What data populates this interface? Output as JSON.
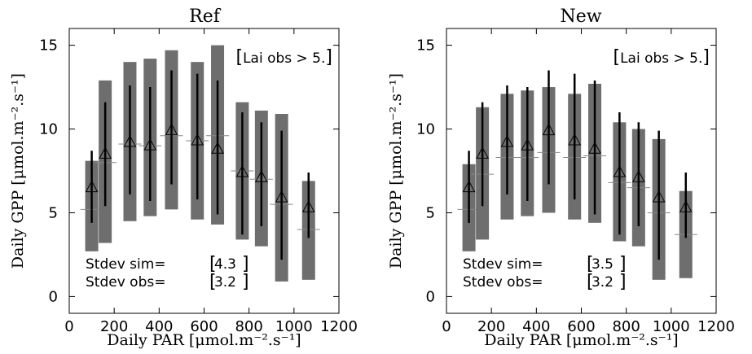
{
  "chart_data": [
    {
      "type": "box",
      "title": "Ref",
      "xlabel": "Daily PAR [μmol.m⁻².s⁻¹]",
      "ylabel": "Daily GPP [μmol.m⁻².s⁻¹]",
      "xlim": [
        0,
        1200
      ],
      "ylim": [
        -1,
        16
      ],
      "xticks": [
        "0",
        "200",
        "400",
        "600",
        "800",
        "1000",
        "1200"
      ],
      "xtick_values": [
        0,
        200,
        400,
        600,
        800,
        1000,
        1200
      ],
      "yticks": [
        "0",
        "5",
        "10",
        "15"
      ],
      "ytick_values": [
        0,
        5,
        10,
        15
      ],
      "annotation": "Lai obs > 5.",
      "stats": [
        {
          "label": "Stdev sim=",
          "value": "4.3"
        },
        {
          "label": "Stdev obs=",
          "value": "3.2"
        }
      ],
      "series": [
        {
          "x": [
            100,
            160,
            270,
            360,
            455,
            570,
            660,
            770,
            855,
            945,
            1065
          ],
          "sim_box": [
            [
              2.7,
              8.1
            ],
            [
              3.2,
              12.9
            ],
            [
              4.5,
              14.0
            ],
            [
              4.8,
              14.2
            ],
            [
              5.2,
              14.7
            ],
            [
              4.6,
              14.0
            ],
            [
              4.3,
              15.0
            ],
            [
              3.4,
              11.6
            ],
            [
              3.0,
              11.1
            ],
            [
              0.9,
              10.9
            ],
            [
              1.0,
              6.9
            ]
          ],
          "sim_mean": [
            5.2,
            8.0,
            9.1,
            9.0,
            9.6,
            9.3,
            9.6,
            7.5,
            7.0,
            5.5,
            4.0
          ],
          "obs_mean": [
            6.5,
            8.5,
            9.2,
            9.0,
            9.9,
            9.3,
            8.8,
            7.4,
            7.1,
            5.9,
            5.3
          ],
          "obs_err": [
            [
              4.4,
              8.7
            ],
            [
              5.4,
              11.6
            ],
            [
              6.1,
              12.6
            ],
            [
              5.7,
              12.5
            ],
            [
              6.7,
              13.5
            ],
            [
              5.8,
              13.3
            ],
            [
              4.9,
              12.9
            ],
            [
              3.7,
              11.0
            ],
            [
              4.2,
              10.4
            ],
            [
              2.2,
              9.9
            ],
            [
              3.5,
              7.4
            ]
          ]
        }
      ]
    },
    {
      "type": "box",
      "title": "New",
      "xlabel": "Daily PAR [μmol.m⁻².s⁻¹]",
      "ylabel": "Daily GPP [μmol.m⁻².s⁻¹]",
      "xlim": [
        0,
        1200
      ],
      "ylim": [
        -1,
        16
      ],
      "xticks": [
        "0",
        "200",
        "400",
        "600",
        "800",
        "1000",
        "1200"
      ],
      "xtick_values": [
        0,
        200,
        400,
        600,
        800,
        1000,
        1200
      ],
      "yticks": [
        "0",
        "5",
        "10",
        "15"
      ],
      "ytick_values": [
        0,
        5,
        10,
        15
      ],
      "annotation": "Lai obs > 5.",
      "stats": [
        {
          "label": "Stdev sim=",
          "value": "3.5"
        },
        {
          "label": "Stdev obs=",
          "value": "3.2"
        }
      ],
      "series": [
        {
          "x": [
            100,
            160,
            270,
            360,
            455,
            570,
            660,
            770,
            855,
            945,
            1065
          ],
          "sim_box": [
            [
              2.7,
              7.9
            ],
            [
              3.4,
              11.3
            ],
            [
              4.6,
              12.1
            ],
            [
              4.8,
              12.3
            ],
            [
              5.0,
              12.5
            ],
            [
              4.6,
              12.1
            ],
            [
              4.4,
              12.7
            ],
            [
              3.3,
              10.4
            ],
            [
              3.0,
              10.0
            ],
            [
              1.0,
              9.4
            ],
            [
              1.1,
              6.3
            ]
          ],
          "sim_mean": [
            5.2,
            7.3,
            8.3,
            8.3,
            8.6,
            8.3,
            8.4,
            6.8,
            6.5,
            5.0,
            3.7
          ],
          "obs_mean": [
            6.5,
            8.5,
            9.2,
            9.0,
            9.9,
            9.3,
            8.8,
            7.4,
            7.1,
            5.9,
            5.3
          ],
          "obs_err": [
            [
              4.4,
              8.7
            ],
            [
              5.4,
              11.6
            ],
            [
              6.1,
              12.6
            ],
            [
              5.7,
              12.5
            ],
            [
              6.7,
              13.5
            ],
            [
              5.8,
              13.3
            ],
            [
              4.9,
              12.9
            ],
            [
              3.7,
              11.0
            ],
            [
              4.2,
              10.4
            ],
            [
              2.2,
              9.9
            ],
            [
              3.5,
              7.4
            ]
          ]
        }
      ]
    }
  ]
}
